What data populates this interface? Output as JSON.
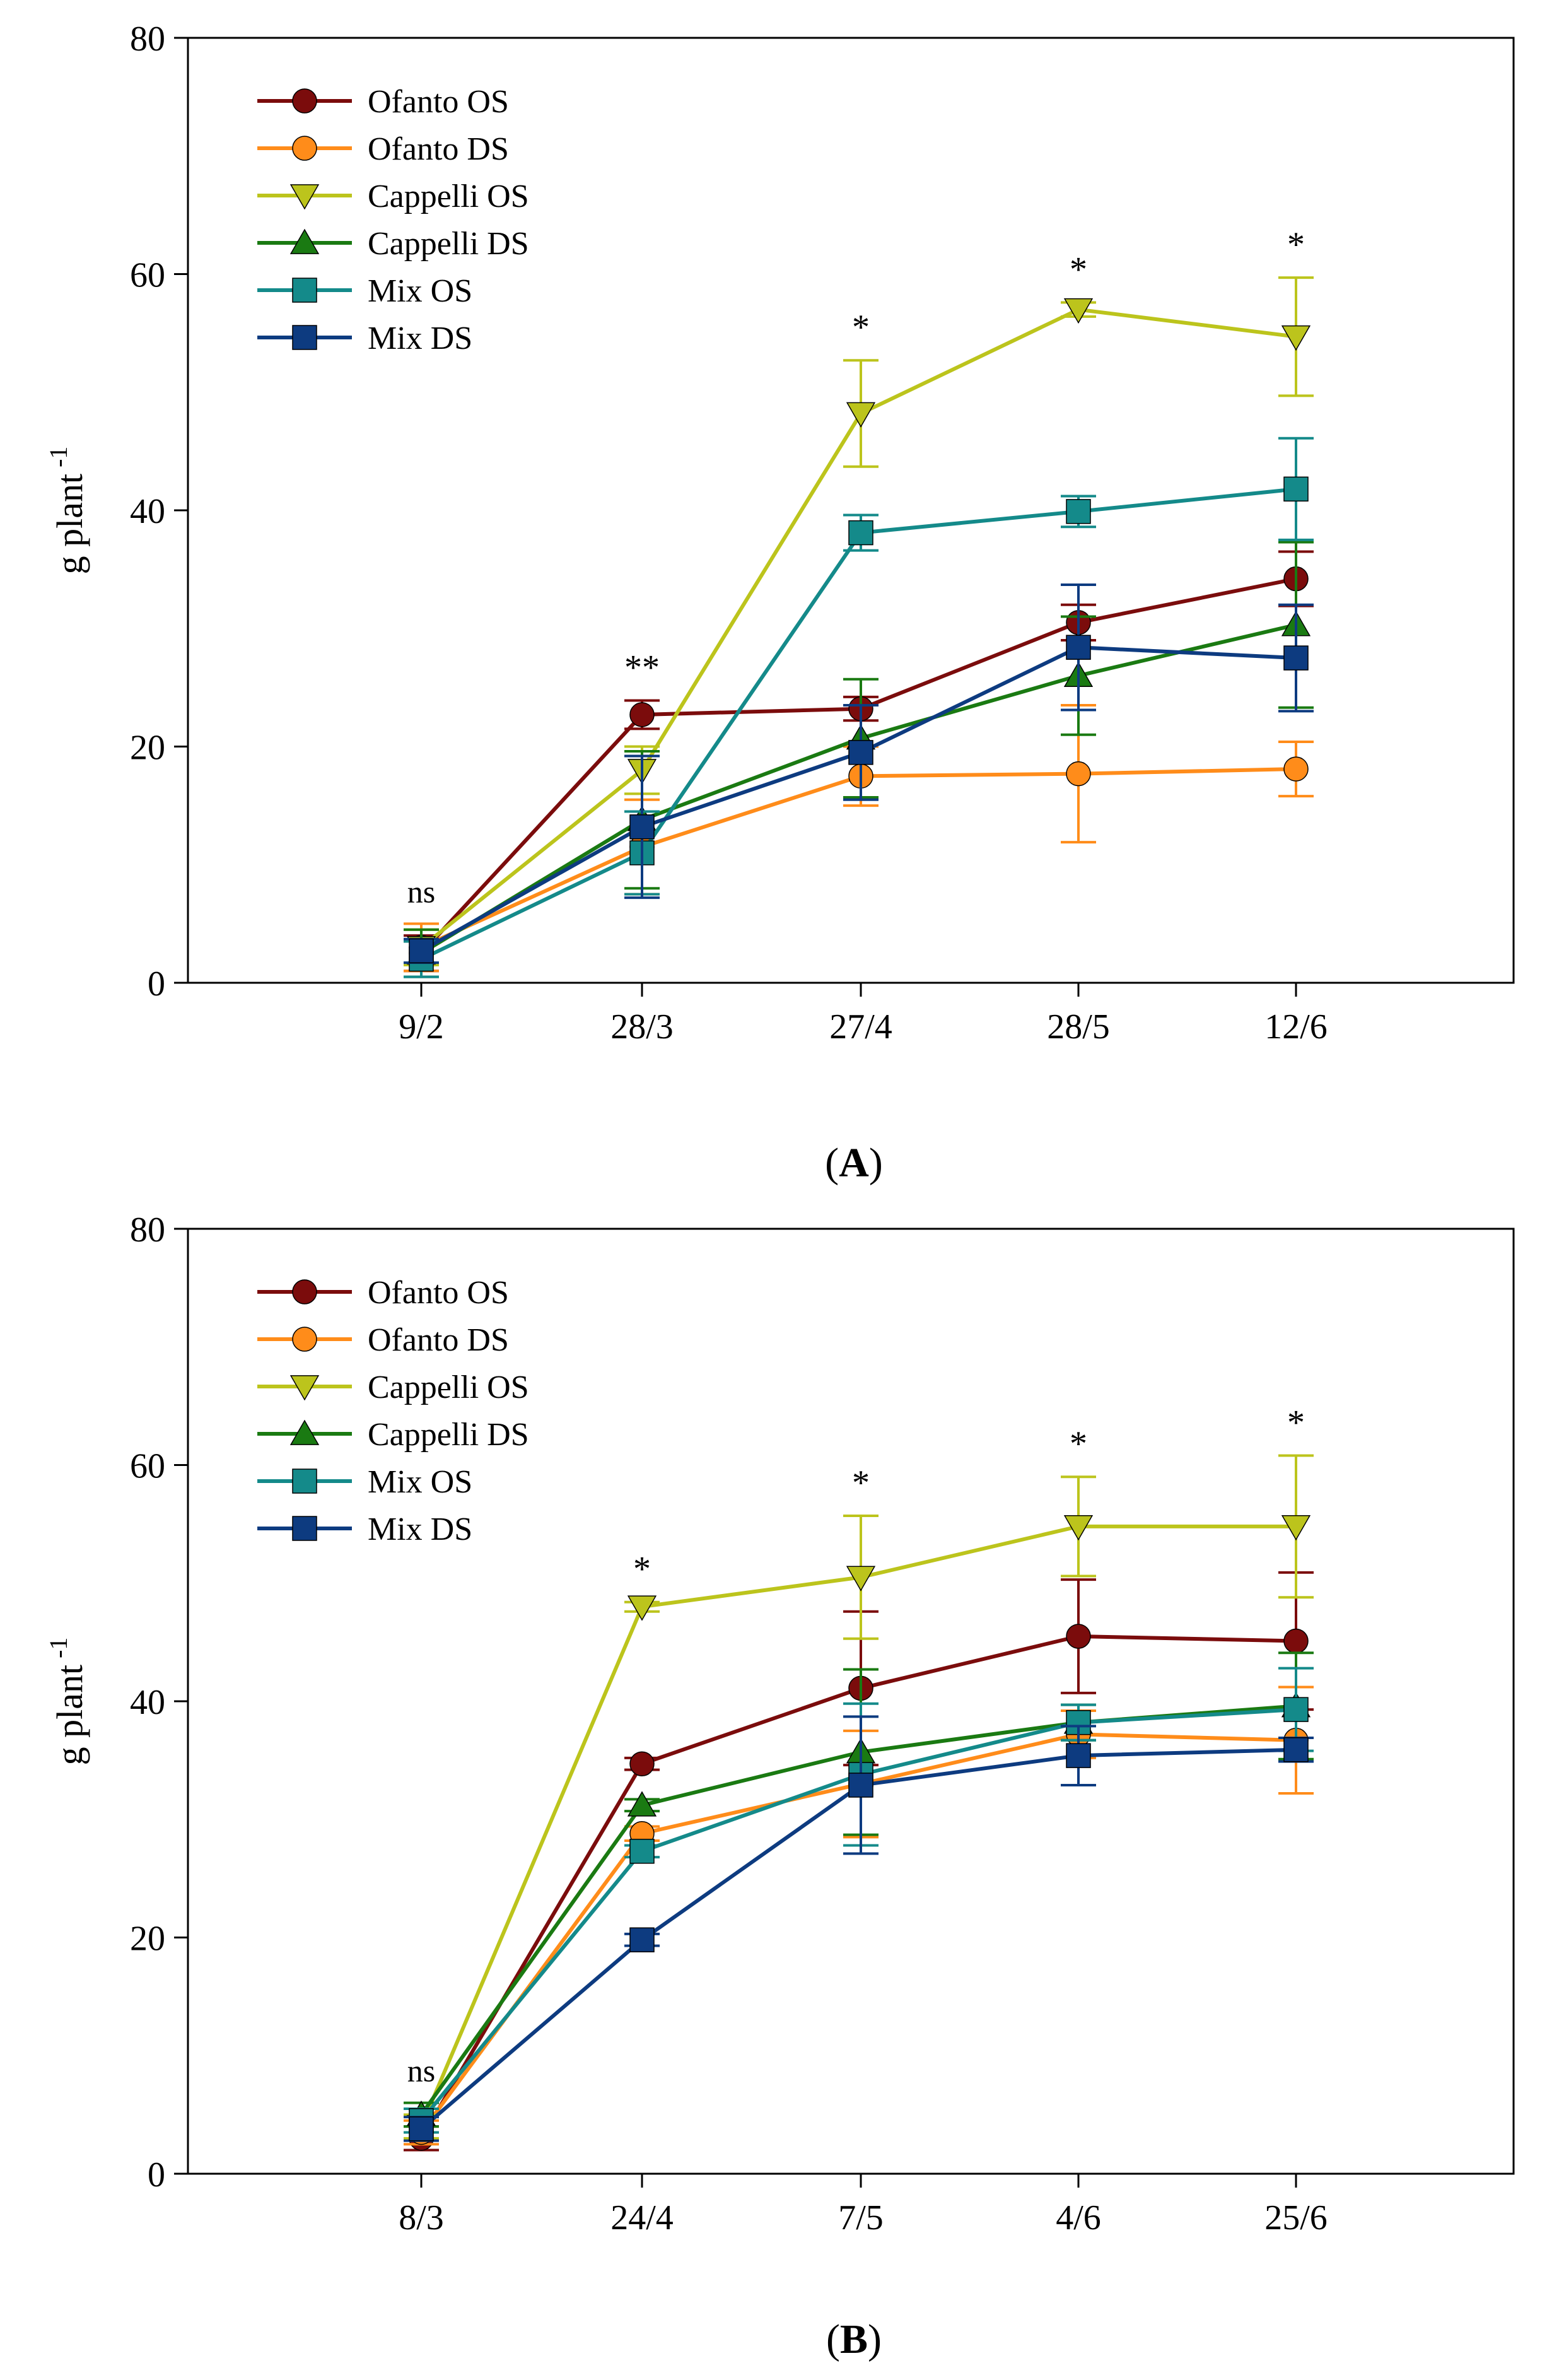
{
  "chart_data": [
    {
      "type": "line",
      "panel_label": "A",
      "ylabel": "g plant",
      "ylabel_sup": "-1",
      "xlabel": "",
      "ylim": [
        0,
        80
      ],
      "yticks": [
        "0",
        "20",
        "40",
        "60",
        "80"
      ],
      "categories": [
        "9/2",
        "28/3",
        "27/4",
        "28/5",
        "12/6"
      ],
      "significance": [
        "ns",
        "**",
        "*",
        "*",
        "*"
      ],
      "series": [
        {
          "name": "Ofanto OS",
          "marker": "circle",
          "color": "#7b0c0c",
          "values": [
            2.5,
            22.7,
            23.2,
            30.5,
            34.2
          ],
          "errors": [
            1.5,
            1.2,
            1.0,
            1.5,
            2.3
          ]
        },
        {
          "name": "Ofanto DS",
          "marker": "circle",
          "color": "#ff8c1a",
          "values": [
            3.0,
            11.5,
            17.5,
            17.7,
            18.1
          ],
          "errors": [
            2.0,
            4.0,
            2.5,
            5.8,
            2.3
          ]
        },
        {
          "name": "Cappelli OS",
          "marker": "triangle-down",
          "color": "#bcc41c",
          "values": [
            3.0,
            18.0,
            48.2,
            57.0,
            54.7
          ],
          "errors": [
            1.5,
            2.0,
            4.5,
            0.6,
            5.0
          ]
        },
        {
          "name": "Cappelli DS",
          "marker": "triangle-up",
          "color": "#1a7a12",
          "values": [
            2.5,
            13.8,
            20.7,
            26.0,
            30.3
          ],
          "errors": [
            2.0,
            5.8,
            5.0,
            5.0,
            7.0
          ]
        },
        {
          "name": "Mix OS",
          "marker": "square",
          "color": "#148a8a",
          "values": [
            2.0,
            11.0,
            38.1,
            39.9,
            41.8
          ],
          "errors": [
            1.5,
            3.5,
            1.5,
            1.3,
            4.3
          ]
        },
        {
          "name": "Mix DS",
          "marker": "square",
          "color": "#0d3b80",
          "values": [
            2.7,
            13.2,
            19.5,
            28.4,
            27.5
          ],
          "errors": [
            1.0,
            6.0,
            4.0,
            5.3,
            4.5
          ]
        }
      ]
    },
    {
      "type": "line",
      "panel_label": "B",
      "ylabel": "g plant",
      "ylabel_sup": "-1",
      "xlabel": "",
      "ylim": [
        0,
        80
      ],
      "yticks": [
        "0",
        "20",
        "40",
        "60",
        "80"
      ],
      "categories": [
        "8/3",
        "24/4",
        "7/5",
        "4/6",
        "25/6"
      ],
      "significance": [
        "ns",
        "*",
        "*",
        "*",
        "*"
      ],
      "series": [
        {
          "name": "Ofanto OS",
          "marker": "circle",
          "color": "#7b0c0c",
          "values": [
            3.0,
            34.7,
            41.1,
            45.5,
            45.1
          ],
          "errors": [
            1.0,
            0.5,
            6.5,
            4.8,
            5.8
          ]
        },
        {
          "name": "Ofanto DS",
          "marker": "circle",
          "color": "#ff8c1a",
          "values": [
            3.5,
            28.8,
            33.0,
            37.2,
            36.7
          ],
          "errors": [
            1.0,
            0.6,
            4.5,
            2.0,
            4.5
          ]
        },
        {
          "name": "Cappelli OS",
          "marker": "triangle-down",
          "color": "#bcc41c",
          "values": [
            4.0,
            48.0,
            50.5,
            54.8,
            54.8
          ],
          "errors": [
            1.0,
            0.4,
            5.2,
            4.2,
            6.0
          ]
        },
        {
          "name": "Cappelli DS",
          "marker": "triangle-up",
          "color": "#1a7a12",
          "values": [
            5.0,
            31.2,
            35.7,
            38.2,
            39.6
          ],
          "errors": [
            1.0,
            0.5,
            7.0,
            1.5,
            4.5
          ]
        },
        {
          "name": "Mix OS",
          "marker": "square",
          "color": "#148a8a",
          "values": [
            4.5,
            27.3,
            33.8,
            38.2,
            39.3
          ],
          "errors": [
            1.0,
            0.5,
            6.0,
            1.5,
            3.5
          ]
        },
        {
          "name": "Mix DS",
          "marker": "square",
          "color": "#0d3b80",
          "values": [
            3.8,
            19.8,
            32.9,
            35.4,
            35.9
          ],
          "errors": [
            1.0,
            0.5,
            5.8,
            2.5,
            1.0
          ]
        }
      ]
    }
  ]
}
